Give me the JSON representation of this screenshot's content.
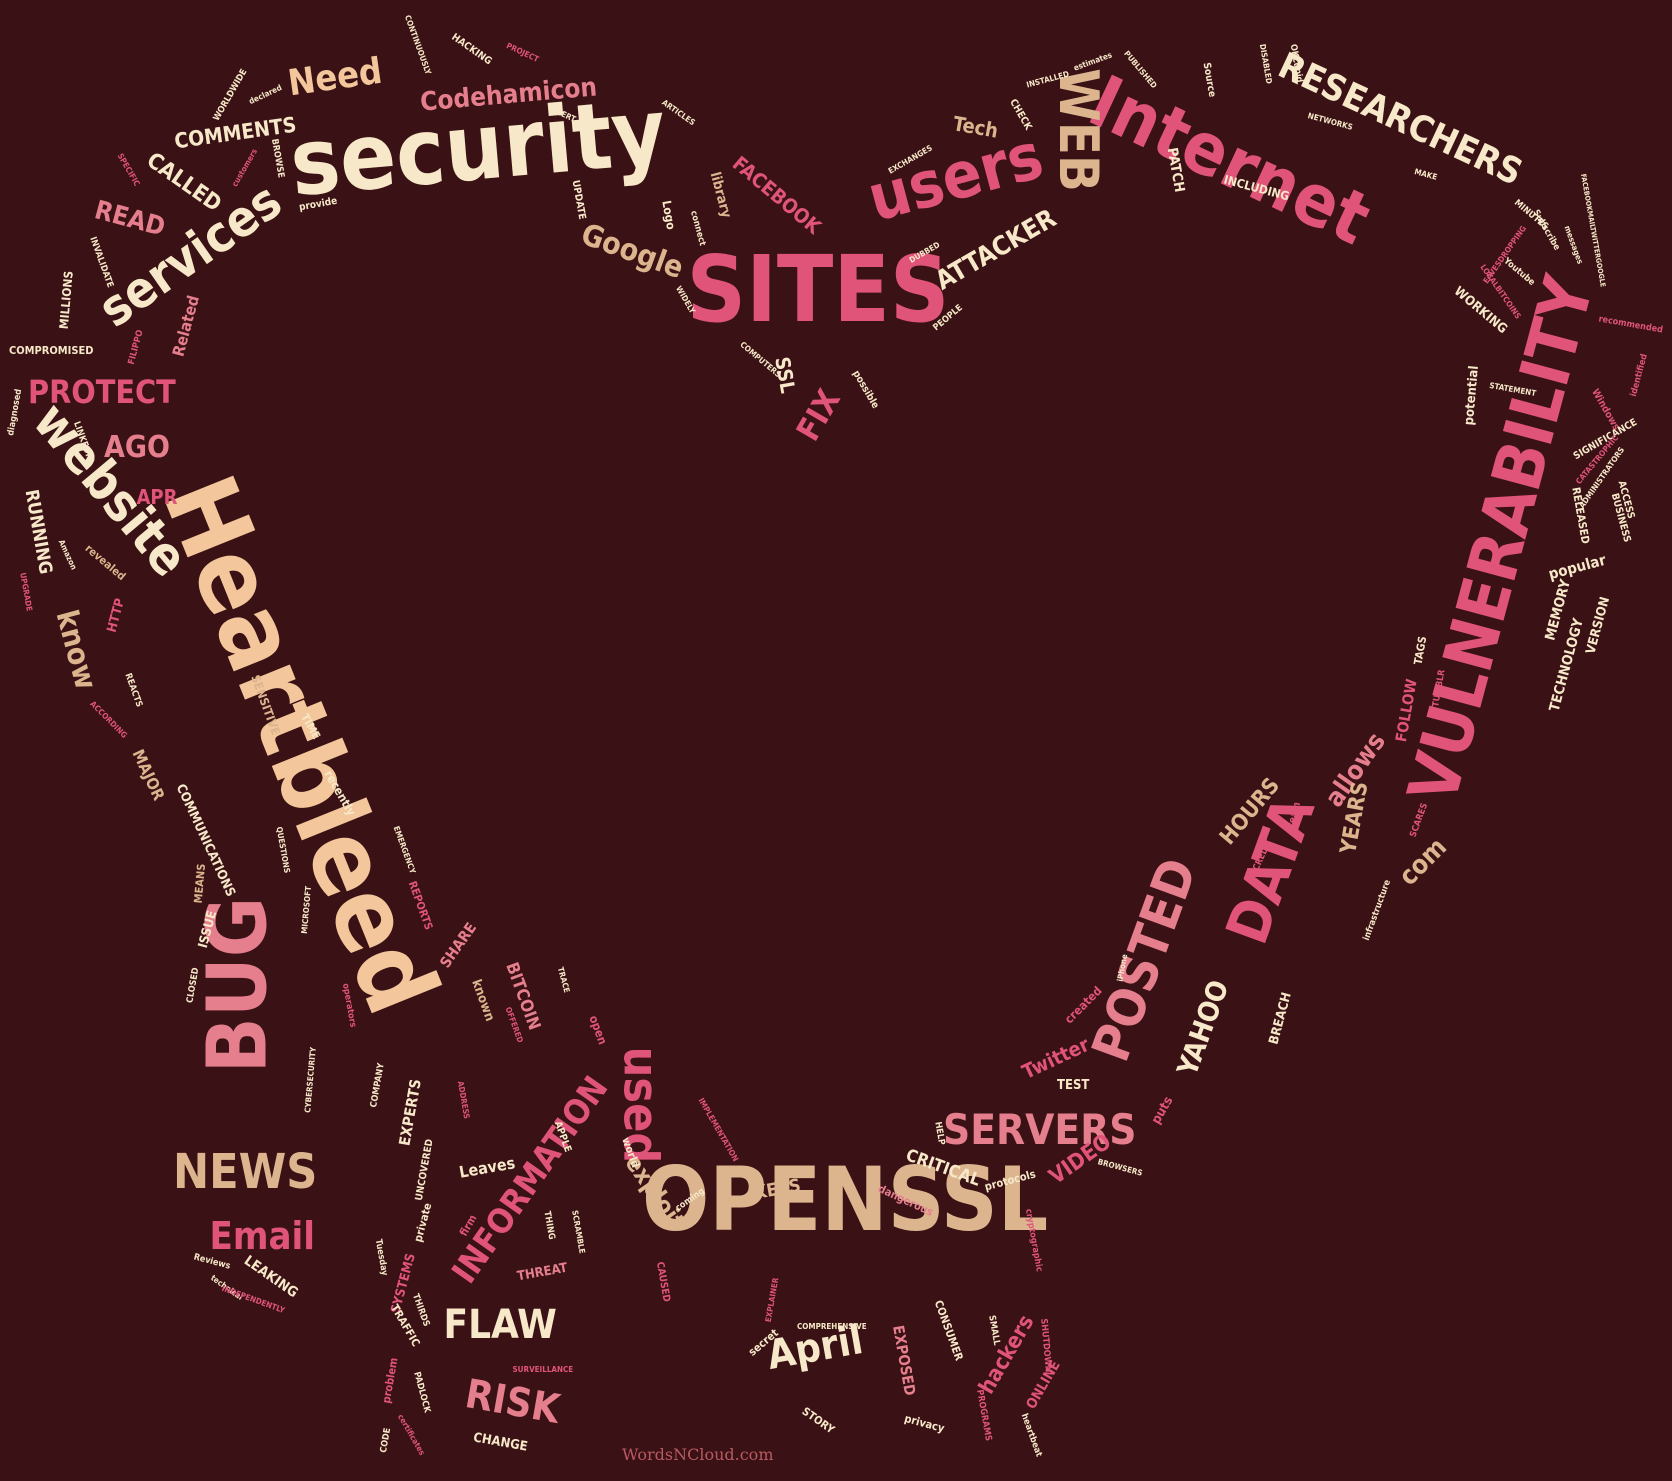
{
  "words": [
    {
      "text": "security",
      "color": "cream"
    },
    {
      "text": "Internet",
      "color": "pink"
    },
    {
      "text": "SITES",
      "color": "pink"
    },
    {
      "text": "users",
      "color": "pink"
    },
    {
      "text": "WEB",
      "color": "tan"
    },
    {
      "text": "RESEARCHERS",
      "color": "cream"
    },
    {
      "text": "VULNERABILITY",
      "color": "pink"
    },
    {
      "text": "Heartbleed",
      "color": "peach"
    },
    {
      "text": "BUG",
      "color": "pinklight"
    },
    {
      "text": "website",
      "color": "cream"
    },
    {
      "text": "services",
      "color": "cream"
    },
    {
      "text": "OPENSSL",
      "color": "tan"
    },
    {
      "text": "used",
      "color": "pink"
    },
    {
      "text": "DATA",
      "color": "pink"
    },
    {
      "text": "POSTED",
      "color": "pinklight"
    },
    {
      "text": "SERVERS",
      "color": "pinklight"
    },
    {
      "text": "NEWS",
      "color": "tan"
    },
    {
      "text": "Email",
      "color": "pink"
    },
    {
      "text": "INFORMATION",
      "color": "pink"
    },
    {
      "text": "FLAW",
      "color": "cream"
    },
    {
      "text": "April",
      "color": "cream"
    },
    {
      "text": "RISK",
      "color": "pinklight"
    },
    {
      "text": "Need",
      "color": "peach"
    },
    {
      "text": "Codehamicon",
      "color": "pinklight"
    },
    {
      "text": "COMMENTS",
      "color": "cream"
    },
    {
      "text": "CALLED",
      "color": "cream"
    },
    {
      "text": "READ",
      "color": "pinklight"
    },
    {
      "text": "PROTECT",
      "color": "pink"
    },
    {
      "text": "AGO",
      "color": "pinklight"
    },
    {
      "text": "APR",
      "color": "pink"
    },
    {
      "text": "know",
      "color": "tan"
    },
    {
      "text": "RUNNING",
      "color": "cream"
    },
    {
      "text": "Related",
      "color": "pinklight"
    },
    {
      "text": "MILLIONS",
      "color": "cream"
    },
    {
      "text": "COMPROMISED",
      "color": "cream"
    },
    {
      "text": "Google",
      "color": "tan"
    },
    {
      "text": "FACEBOOK",
      "color": "pink"
    },
    {
      "text": "library",
      "color": "tan"
    },
    {
      "text": "Logo",
      "color": "cream"
    },
    {
      "text": "FIX",
      "color": "pink"
    },
    {
      "text": "SSL",
      "color": "cream"
    },
    {
      "text": "ATTACKER",
      "color": "cream"
    },
    {
      "text": "Tech",
      "color": "tan"
    },
    {
      "text": "PATCH",
      "color": "cream"
    },
    {
      "text": "INCLUDING",
      "color": "cream"
    },
    {
      "text": "WORKING",
      "color": "cream"
    },
    {
      "text": "potential",
      "color": "cream"
    },
    {
      "text": "MEMORY",
      "color": "cream"
    },
    {
      "text": "VERSION",
      "color": "cream"
    },
    {
      "text": "TECHNOLOGY",
      "color": "cream"
    },
    {
      "text": "popular",
      "color": "cream"
    },
    {
      "text": "FOLLOW",
      "color": "pink"
    },
    {
      "text": "allows",
      "color": "pinklight"
    },
    {
      "text": "YEARS",
      "color": "tan"
    },
    {
      "text": "HOURS",
      "color": "tan"
    },
    {
      "text": "com",
      "color": "tan"
    },
    {
      "text": "YAHOO",
      "color": "cream"
    },
    {
      "text": "Twitter",
      "color": "pink"
    },
    {
      "text": "VIDEO",
      "color": "pink"
    },
    {
      "text": "CRITICAL",
      "color": "cream"
    },
    {
      "text": "KEYS",
      "color": "tan"
    },
    {
      "text": "exploit",
      "color": "tan"
    },
    {
      "text": "Leaves",
      "color": "cream"
    },
    {
      "text": "EXPERTS",
      "color": "cream"
    },
    {
      "text": "SHARE",
      "color": "pinklight"
    },
    {
      "text": "BITCOIN",
      "color": "pinklight"
    },
    {
      "text": "known",
      "color": "tan"
    },
    {
      "text": "open",
      "color": "pink"
    },
    {
      "text": "hackers",
      "color": "pink"
    },
    {
      "text": "ONLINE",
      "color": "pink"
    },
    {
      "text": "EXPOSED",
      "color": "pinklight"
    },
    {
      "text": "THREAT",
      "color": "pinklight"
    },
    {
      "text": "SYSTEMS",
      "color": "pink"
    },
    {
      "text": "LEAKING",
      "color": "cream"
    },
    {
      "text": "MAJOR",
      "color": "tan"
    },
    {
      "text": "COMMUNICATIONS",
      "color": "cream"
    },
    {
      "text": "recently",
      "color": "cream"
    },
    {
      "text": "SENSITIVE",
      "color": "tan"
    },
    {
      "text": "ISSUE",
      "color": "cream"
    },
    {
      "text": "MEANS",
      "color": "tan"
    },
    {
      "text": "HTTP",
      "color": "pink"
    },
    {
      "text": "revealed",
      "color": "tan"
    },
    {
      "text": "REPORTS",
      "color": "pink"
    },
    {
      "text": "CHANGE",
      "color": "cream"
    },
    {
      "text": "TEST",
      "color": "cream"
    },
    {
      "text": "puts",
      "color": "pink"
    },
    {
      "text": "BREACH",
      "color": "cream"
    },
    {
      "text": "created",
      "color": "pink"
    },
    {
      "text": "protocols",
      "color": "cream"
    },
    {
      "text": "dangerous",
      "color": "pinklight"
    },
    {
      "text": "CONSUMER",
      "color": "cream"
    },
    {
      "text": "STORY",
      "color": "cream"
    },
    {
      "text": "privacy",
      "color": "cream"
    },
    {
      "text": "secret",
      "color": "cream"
    },
    {
      "text": "TRAFFIC",
      "color": "cream"
    },
    {
      "text": "problem",
      "color": "pink"
    },
    {
      "text": "private",
      "color": "cream"
    },
    {
      "text": "UNCOVERED",
      "color": "cream"
    },
    {
      "text": "firm",
      "color": "pink"
    },
    {
      "text": "world",
      "color": "cream"
    },
    {
      "text": "TIME",
      "color": "cream"
    },
    {
      "text": "UPDATE",
      "color": "cream"
    },
    {
      "text": "connect",
      "color": "cream"
    },
    {
      "text": "WIDELY",
      "color": "cream"
    },
    {
      "text": "COMPUTERS",
      "color": "cream"
    },
    {
      "text": "possible",
      "color": "cream"
    },
    {
      "text": "PEOPLE",
      "color": "cream"
    },
    {
      "text": "DUBBED",
      "color": "cream"
    },
    {
      "text": "EXCHANGES",
      "color": "cream"
    },
    {
      "text": "CHECK",
      "color": "cream"
    },
    {
      "text": "INSTALLED",
      "color": "cream"
    },
    {
      "text": "estimates",
      "color": "cream"
    },
    {
      "text": "PUBLISHED",
      "color": "cream"
    },
    {
      "text": "Source",
      "color": "cream"
    },
    {
      "text": "DISABLED",
      "color": "cream"
    },
    {
      "text": "OKCupid",
      "color": "cream"
    },
    {
      "text": "NETWORKS",
      "color": "cream"
    },
    {
      "text": "MAKE",
      "color": "cream"
    },
    {
      "text": "MINUTES",
      "color": "cream"
    },
    {
      "text": "Subscribe",
      "color": "cream"
    },
    {
      "text": "EAVESDROPPING",
      "color": "pink"
    },
    {
      "text": "Youtube",
      "color": "cream"
    },
    {
      "text": "LOCALBITCOINS",
      "color": "pink"
    },
    {
      "text": "messages",
      "color": "cream"
    },
    {
      "text": "FACEBOOKMAILTWITTERGOOGLE",
      "color": "cream"
    },
    {
      "text": "recommended",
      "color": "pink"
    },
    {
      "text": "identified",
      "color": "pink"
    },
    {
      "text": "STATEMENT",
      "color": "cream"
    },
    {
      "text": "Windows",
      "color": "pink"
    },
    {
      "text": "SIGNIFICANCE",
      "color": "cream"
    },
    {
      "text": "CATASTROPHIC",
      "color": "pink"
    },
    {
      "text": "ADMINISTRATORS",
      "color": "cream"
    },
    {
      "text": "RELEASED",
      "color": "cream"
    },
    {
      "text": "ACCESS",
      "color": "cream"
    },
    {
      "text": "BUSINESS",
      "color": "cream"
    },
    {
      "text": "TAGS",
      "color": "cream"
    },
    {
      "text": "TUMBLR",
      "color": "pink"
    },
    {
      "text": "SCARES",
      "color": "pink"
    },
    {
      "text": "team",
      "color": "pink"
    },
    {
      "text": "CREDIT",
      "color": "pink"
    },
    {
      "text": "infrastructure",
      "color": "cream"
    },
    {
      "text": "iPhone",
      "color": "cream"
    },
    {
      "text": "HELP",
      "color": "cream"
    },
    {
      "text": "BROWSERS",
      "color": "cream"
    },
    {
      "text": "cryptographic",
      "color": "pink"
    },
    {
      "text": "SMALL",
      "color": "cream"
    },
    {
      "text": "SHUTDOWN",
      "color": "pink"
    },
    {
      "text": "PROGRAMS",
      "color": "pink"
    },
    {
      "text": "heartbeat",
      "color": "cream"
    },
    {
      "text": "COMPREHENSIVE",
      "color": "cream"
    },
    {
      "text": "EXPLAINER",
      "color": "pink"
    },
    {
      "text": "CAUSED",
      "color": "pink"
    },
    {
      "text": "coming",
      "color": "cream"
    },
    {
      "text": "IMPLEMENTATION",
      "color": "pink"
    },
    {
      "text": "APPLE",
      "color": "cream"
    },
    {
      "text": "SCRAMBLE",
      "color": "cream"
    },
    {
      "text": "THING",
      "color": "cream"
    },
    {
      "text": "ADDRESS",
      "color": "pink"
    },
    {
      "text": "OFFERED",
      "color": "pink"
    },
    {
      "text": "TRACE",
      "color": "cream"
    },
    {
      "text": "SURVEILLANCE",
      "color": "pink"
    },
    {
      "text": "PADLOCK",
      "color": "cream"
    },
    {
      "text": "certificates",
      "color": "pink"
    },
    {
      "text": "CODE",
      "color": "cream"
    },
    {
      "text": "THIRDS",
      "color": "cream"
    },
    {
      "text": "Tuesday",
      "color": "cream"
    },
    {
      "text": "COMPANY",
      "color": "cream"
    },
    {
      "text": "CYBERSECURITY",
      "color": "cream"
    },
    {
      "text": "operators",
      "color": "pink"
    },
    {
      "text": "MICROSOFT",
      "color": "cream"
    },
    {
      "text": "CLOSED",
      "color": "cream"
    },
    {
      "text": "QUESTIONS",
      "color": "cream"
    },
    {
      "text": "EMERGENCY",
      "color": "cream"
    },
    {
      "text": "REACTS",
      "color": "cream"
    },
    {
      "text": "ACCORDING",
      "color": "pink"
    },
    {
      "text": "Amazon",
      "color": "cream"
    },
    {
      "text": "UPGRADE",
      "color": "pink"
    },
    {
      "text": "diagnosed",
      "color": "cream"
    },
    {
      "text": "LINKEDIN",
      "color": "cream"
    },
    {
      "text": "FILIPPO",
      "color": "pink"
    },
    {
      "text": "INVALIDATE",
      "color": "cream"
    },
    {
      "text": "SPECIFIC",
      "color": "pink"
    },
    {
      "text": "provide",
      "color": "cream"
    },
    {
      "text": "customers",
      "color": "pink"
    },
    {
      "text": "BROWSE",
      "color": "cream"
    },
    {
      "text": "WORLDWIDE",
      "color": "cream"
    },
    {
      "text": "declared",
      "color": "cream"
    },
    {
      "text": "CONTINUOUSLY",
      "color": "cream"
    },
    {
      "text": "HACKING",
      "color": "cream"
    },
    {
      "text": "PROJECT",
      "color": "pink"
    },
    {
      "text": "ALERT",
      "color": "cream"
    },
    {
      "text": "ARTICLES",
      "color": "cream"
    },
    {
      "text": "Reviews",
      "color": "cream"
    },
    {
      "text": "technical",
      "color": "cream"
    },
    {
      "text": "INDEPENDENTLY",
      "color": "pink"
    }
  ],
  "palette": {
    "background": "#3a1114",
    "cream": "#f6e8c8",
    "tan": "#dcb58f",
    "peach": "#f3c79b",
    "pink": "#e0547a",
    "pinklight": "#e57f8d"
  },
  "credit": "WordsNCloud.com"
}
